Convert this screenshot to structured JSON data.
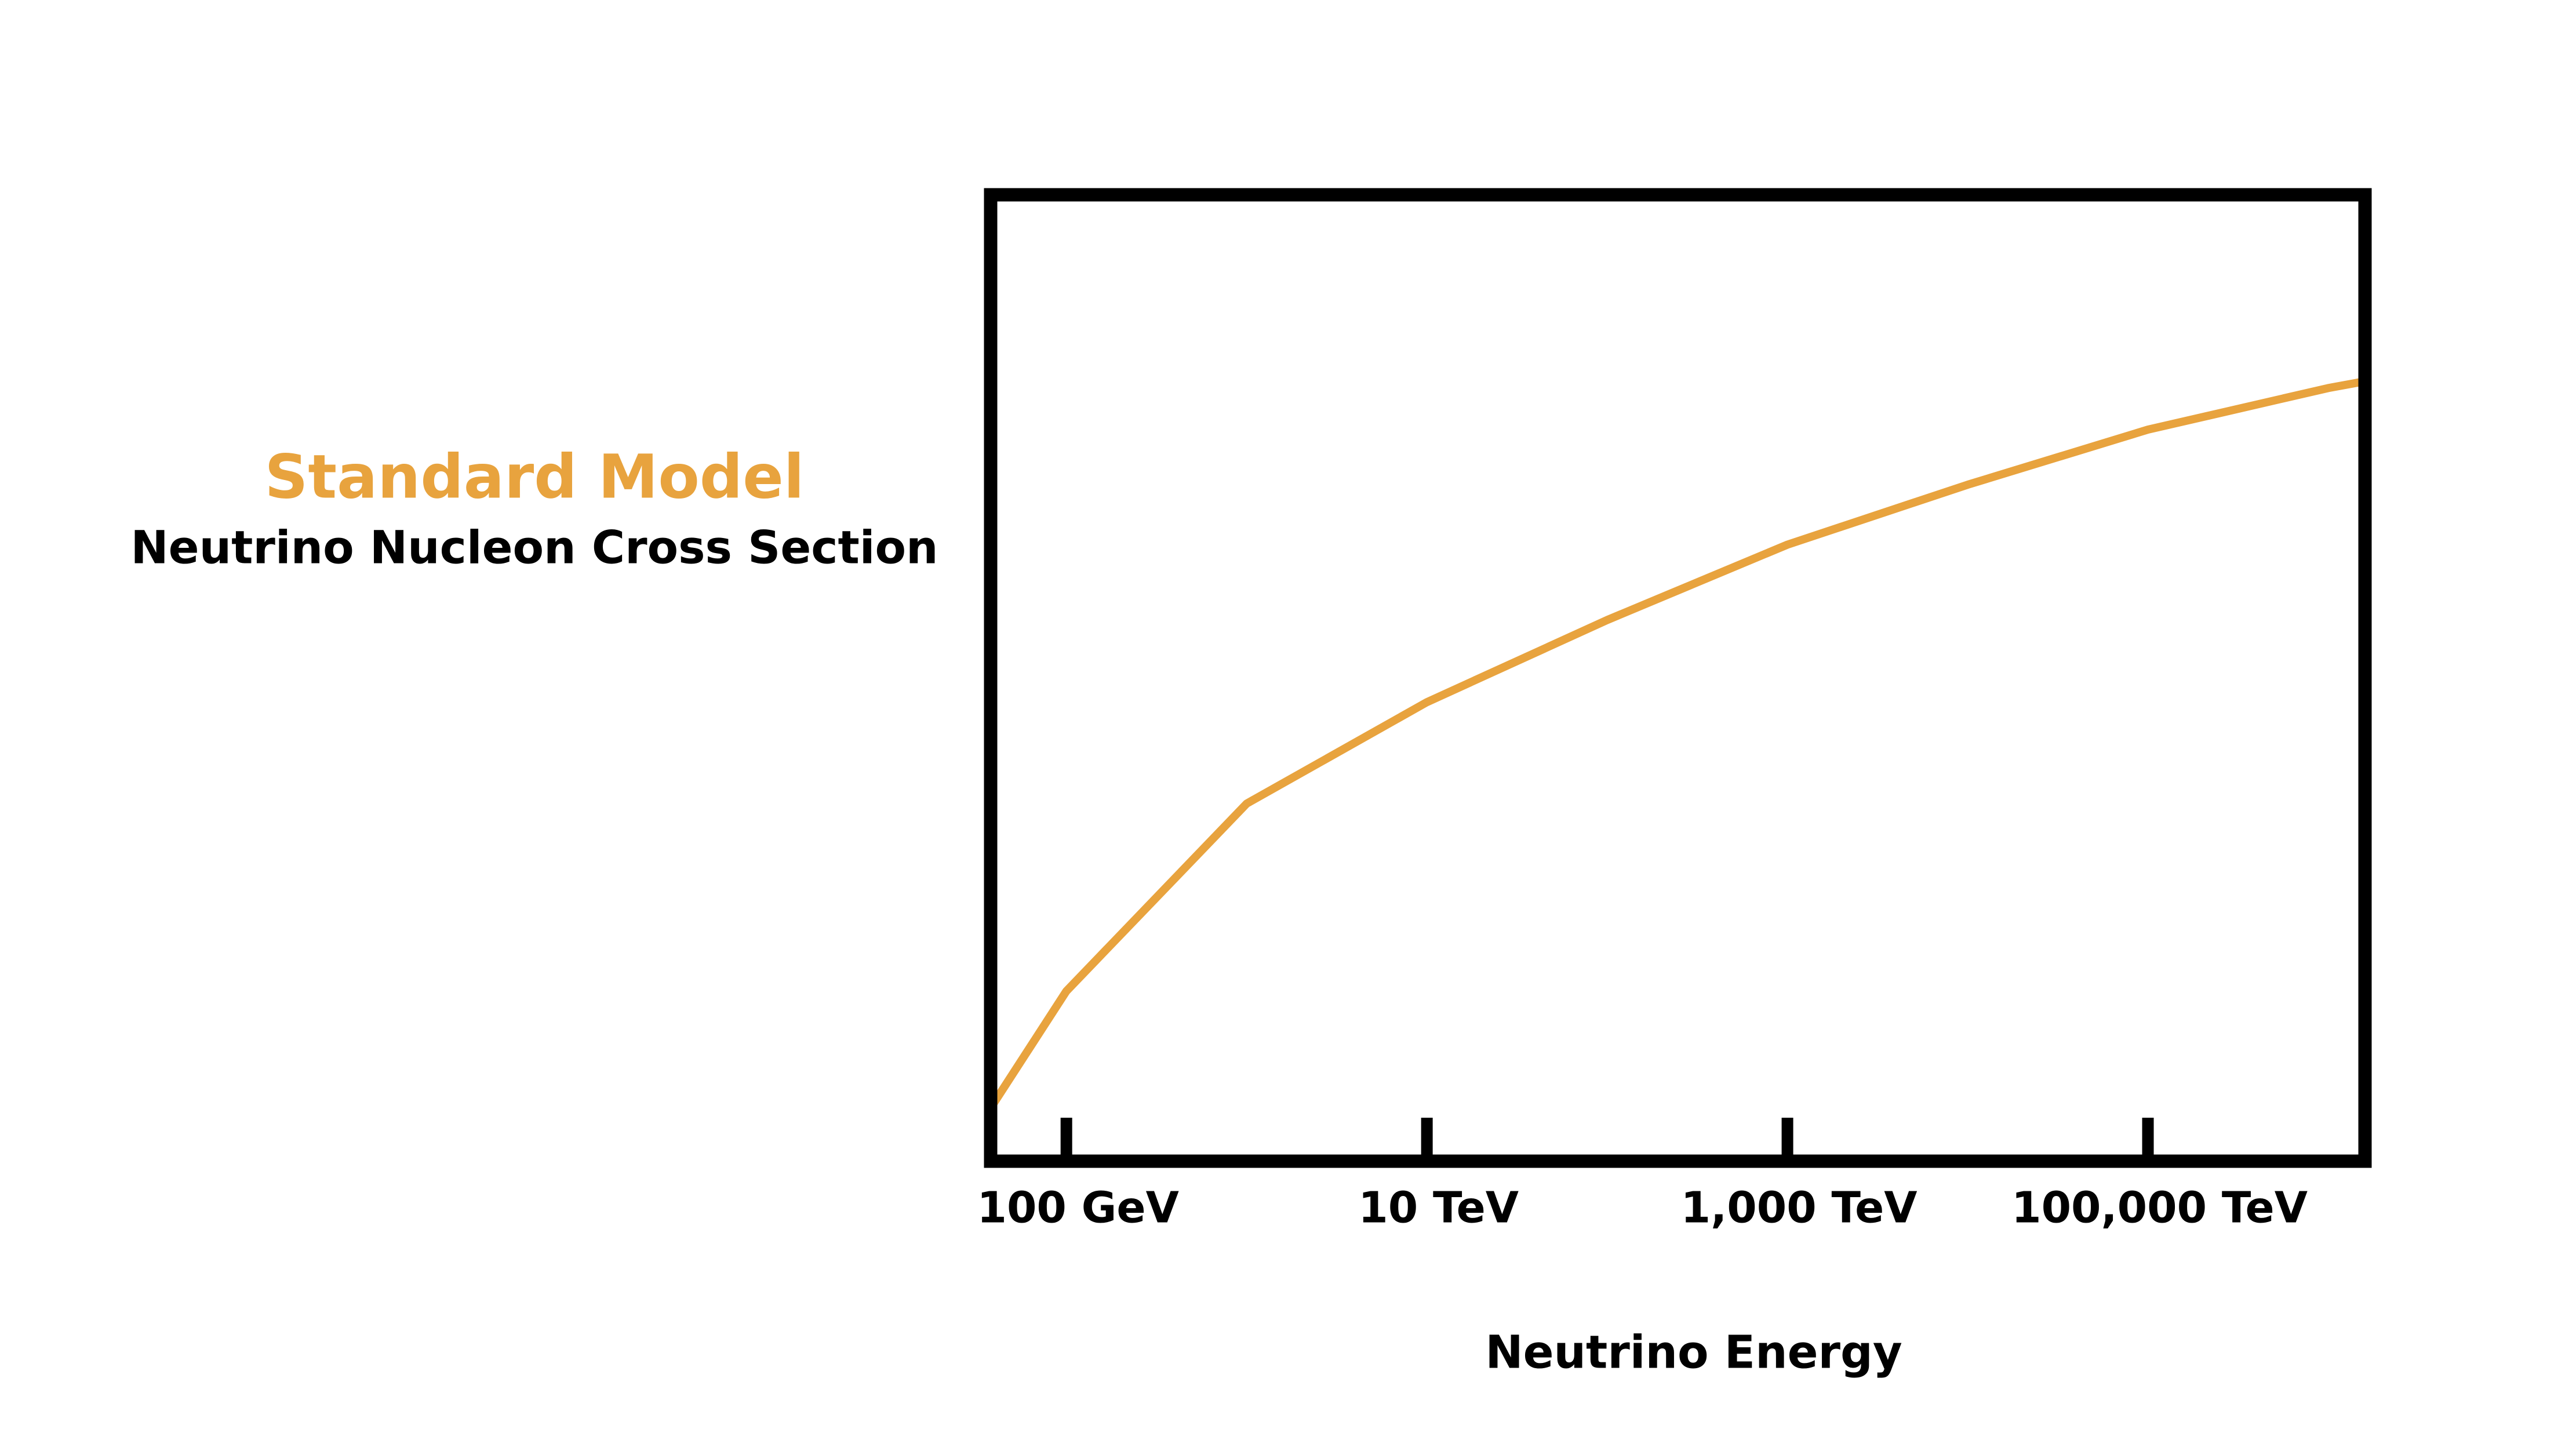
{
  "chart_data": {
    "type": "line",
    "title": "Standard Model",
    "subtitle": "Neutrino Nucleon Cross Section",
    "xlabel": "Neutrino Energy",
    "xscale": "log",
    "xlim": [
      38,
      1600000000
    ],
    "xticks": [
      {
        "value": 100,
        "label": "100 GeV"
      },
      {
        "value": 10000,
        "label": "10 TeV"
      },
      {
        "value": 1000000,
        "label": "1,000 TeV"
      },
      {
        "value": 100000000,
        "label": "100,000 TeV"
      }
    ],
    "ylim": [
      0,
      100
    ],
    "x": [
      38,
      100,
      1000,
      10000,
      100000,
      1000000,
      10000000,
      100000000,
      1000000000,
      1600000000
    ],
    "series": [
      {
        "name": "Standard Model",
        "color": "#e8a33e",
        "values": [
          5.5,
          17.6,
          37,
          47.5,
          56,
          63.8,
          70,
          75.7,
          80,
          80.7
        ]
      }
    ]
  }
}
